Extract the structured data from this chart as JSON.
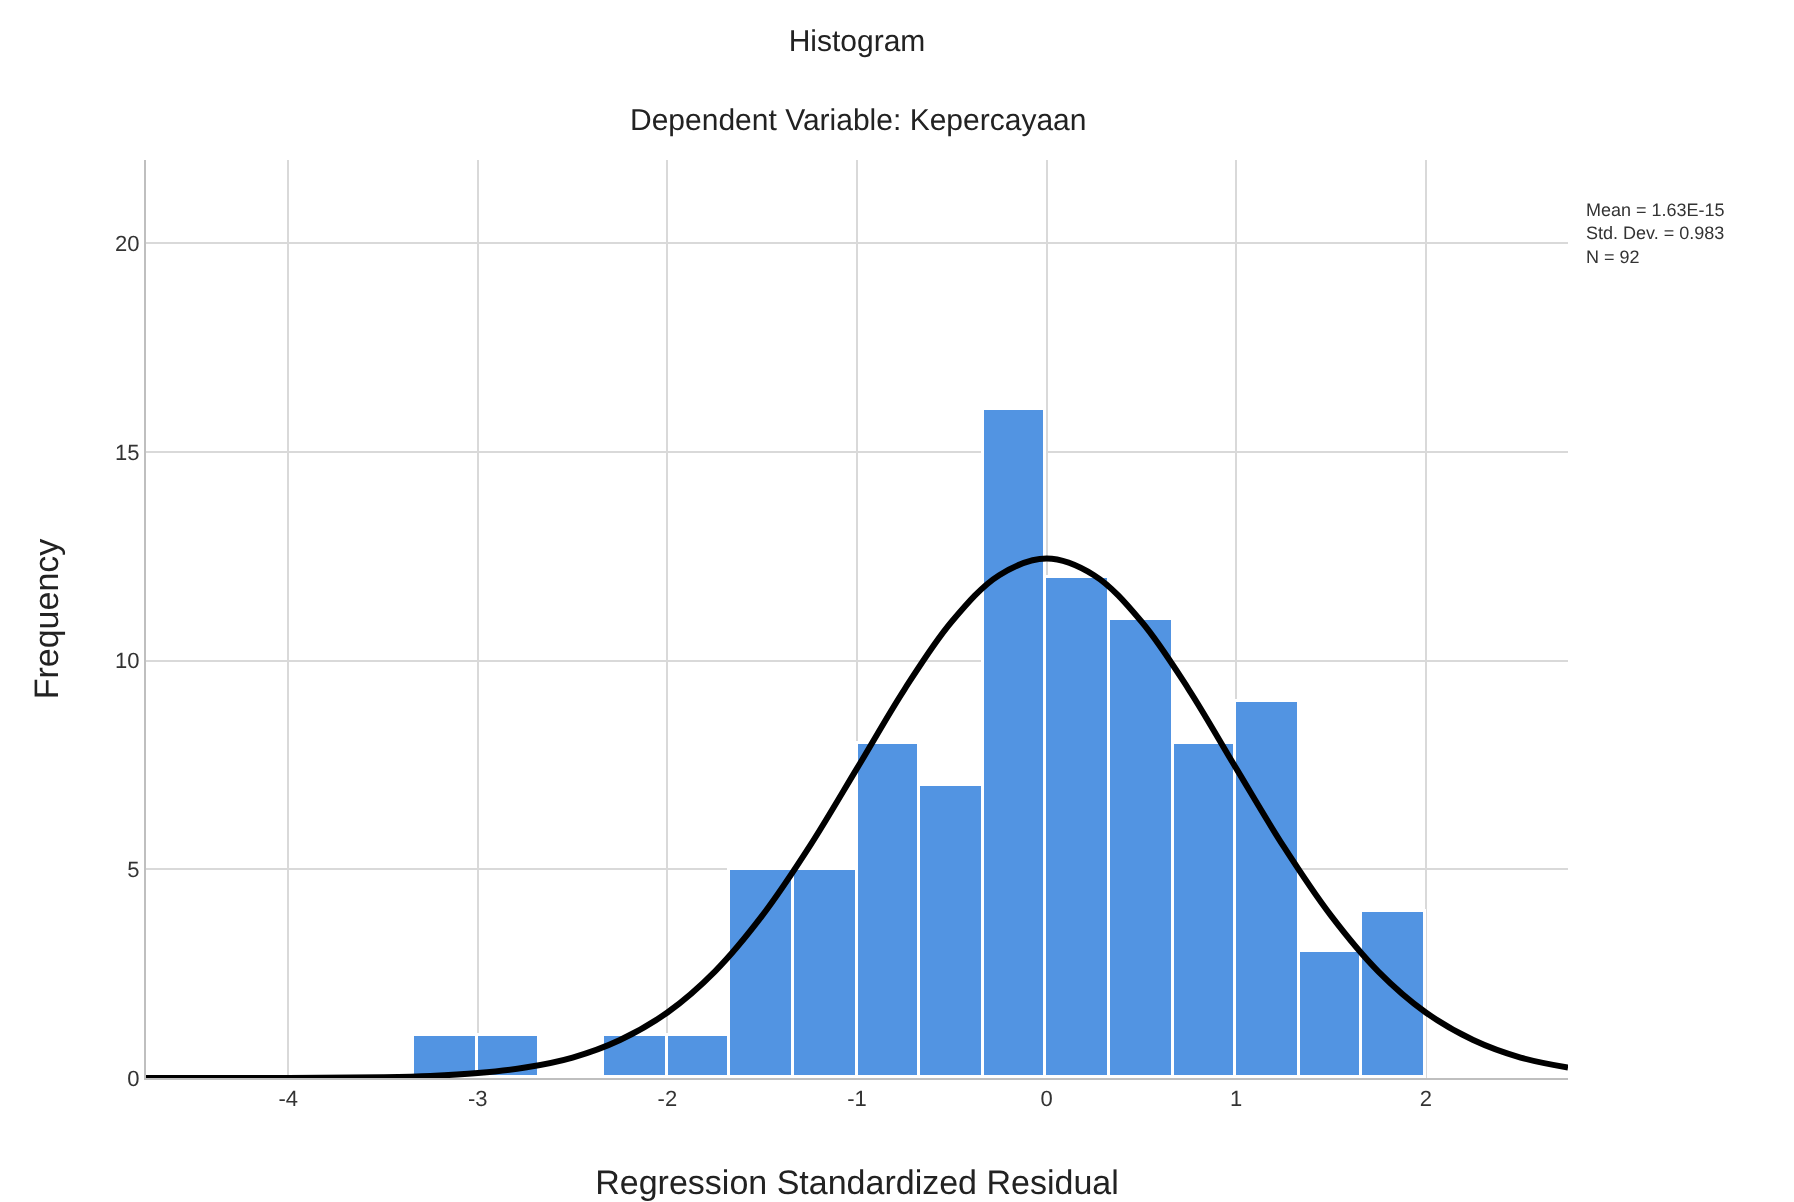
{
  "chart_data": {
    "type": "histogram",
    "title": "Histogram",
    "subtitle": "Dependent Variable: Kepercayaan",
    "xlabel": "Regression Standardized Residual",
    "ylabel": "Frequency",
    "annotations": [
      "Mean = 1.63E-15\nStd. Dev. = 0.983\nN = 92"
    ],
    "series": [
      {
        "color": "#5294e2",
        "bins": [
          -3.333,
          -3,
          -2.667,
          -2.333,
          -2,
          -1.667,
          -1.333,
          -1,
          -0.667,
          -0.333,
          0,
          0.333,
          0.667,
          1,
          1.333,
          1.667,
          2
        ],
        "values": [
          1,
          1,
          0,
          1,
          1,
          5,
          5,
          8,
          7,
          16,
          12,
          11,
          8,
          9,
          3,
          4
        ]
      },
      {
        "type": "line",
        "color": "#000000",
        "x": [
          -4.75,
          -4.5,
          -4,
          -3.5,
          -3.25,
          -3,
          -2.75,
          -2.5,
          -2.25,
          -2,
          -1.75,
          -1.5,
          -1.25,
          -1,
          -0.75,
          -0.5,
          -0.25,
          0,
          0.25,
          0.5,
          0.75,
          1,
          1.25,
          1.5,
          1.75,
          2,
          2.25,
          2.5,
          2.75
        ],
        "values": [
          0,
          0,
          0,
          0.02,
          0.05,
          0.12,
          0.25,
          0.49,
          0.91,
          1.57,
          2.55,
          3.89,
          5.55,
          7.42,
          9.31,
          10.94,
          12.05,
          12.45,
          12.05,
          10.94,
          9.31,
          7.42,
          5.55,
          3.89,
          2.55,
          1.57,
          0.91,
          0.49,
          0.25
        ]
      }
    ],
    "xlim": [
      -4.75,
      2.75
    ],
    "xticks": [
      -4,
      -3,
      -2,
      -1,
      0,
      1,
      2
    ],
    "ylim": [
      0,
      22
    ],
    "yticks": [
      0,
      5,
      10,
      15,
      20
    ],
    "grid": true
  }
}
